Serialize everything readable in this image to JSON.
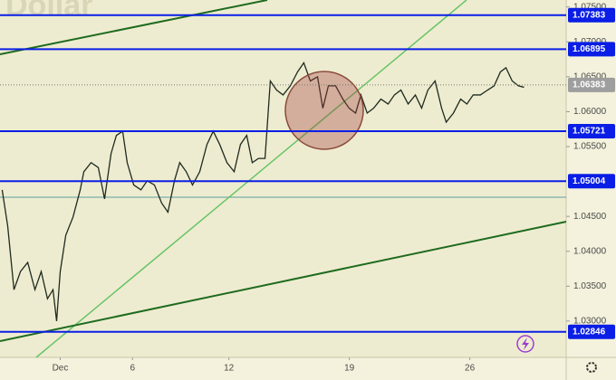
{
  "chart_data": {
    "type": "line",
    "watermark": "Dollar",
    "x": [
      -2.41,
      -2.18,
      -1.92,
      -1.65,
      -1.35,
      -1.05,
      -0.79,
      -0.53,
      -0.3,
      -0.15,
      0,
      0.23,
      0.53,
      0.83,
      0.98,
      1.28,
      1.58,
      1.84,
      2.11,
      2.33,
      2.59,
      2.78,
      3.05,
      3.35,
      3.61,
      3.91,
      4.21,
      4.47,
      4.74,
      4.96,
      5.23,
      5.49,
      5.79,
      6.09,
      6.35,
      6.62,
      6.92,
      7.22,
      7.48,
      7.74,
      7.97,
      8.23,
      8.5,
      8.72,
      8.98,
      9.25,
      9.55,
      9.85,
      10.11,
      10.38,
      10.68,
      10.9,
      11.13,
      11.43,
      11.73,
      11.99,
      12.26,
      12.48,
      12.74,
      13.01,
      13.31,
      13.61,
      13.87,
      14.14,
      14.44,
      14.74,
      15.0,
      15.26,
      15.56,
      15.83,
      16.02,
      16.32,
      16.62,
      16.88,
      17.14,
      17.44,
      17.74,
      18.01,
      18.27,
      18.5,
      18.76,
      19.02,
      19.25
    ],
    "series": [
      {
        "color": "#1f2a1f",
        "values": [
          1.0488,
          1.0436,
          1.0345,
          1.0371,
          1.0384,
          1.0345,
          1.0371,
          1.0332,
          1.0345,
          1.03,
          1.0371,
          1.0423,
          1.0449,
          1.0488,
          1.0514,
          1.0527,
          1.052,
          1.0475,
          1.054,
          1.0566,
          1.0572,
          1.0527,
          1.0495,
          1.0488,
          1.0501,
          1.0495,
          1.0469,
          1.0456,
          1.0501,
          1.0527,
          1.0514,
          1.0495,
          1.0514,
          1.0553,
          1.0572,
          1.0553,
          1.0527,
          1.0514,
          1.0553,
          1.0566,
          1.0527,
          1.0533,
          1.0533,
          1.0644,
          1.0631,
          1.0624,
          1.0637,
          1.0657,
          1.067,
          1.0644,
          1.065,
          1.0605,
          1.0637,
          1.0637,
          1.0618,
          1.0605,
          1.0598,
          1.0624,
          1.0598,
          1.0605,
          1.0618,
          1.0611,
          1.0624,
          1.0631,
          1.0611,
          1.0624,
          1.0605,
          1.0631,
          1.0644,
          1.0605,
          1.0585,
          1.0598,
          1.0618,
          1.0611,
          1.0624,
          1.0624,
          1.0631,
          1.0637,
          1.0657,
          1.0663,
          1.0644,
          1.0637,
          1.0635
        ]
      }
    ],
    "xlim": [
      -2.5,
      21
    ],
    "xticks": [
      {
        "value": 0,
        "label": "Dec"
      },
      {
        "value": 3,
        "label": "6"
      },
      {
        "value": 7,
        "label": "12"
      },
      {
        "value": 12,
        "label": "19"
      },
      {
        "value": 17,
        "label": "26"
      }
    ],
    "ylim": [
      1.0248,
      1.076
    ],
    "yticks": [
      {
        "value": 1.075,
        "label": "1.07500"
      },
      {
        "value": 1.07,
        "label": "1.07000"
      },
      {
        "value": 1.065,
        "label": "1.06500"
      },
      {
        "value": 1.06,
        "label": "1.06000"
      },
      {
        "value": 1.055,
        "label": "1.05500"
      },
      {
        "value": 1.045,
        "label": "1.04500"
      },
      {
        "value": 1.04,
        "label": "1.04000"
      },
      {
        "value": 1.035,
        "label": "1.03500"
      },
      {
        "value": 1.03,
        "label": "1.03000"
      }
    ],
    "levels": [
      1.07383,
      1.06895,
      1.05721,
      1.05004,
      1.02846
    ],
    "level_color": "#0a1ee6",
    "last_price": 1.06383,
    "grid": false
  }
}
